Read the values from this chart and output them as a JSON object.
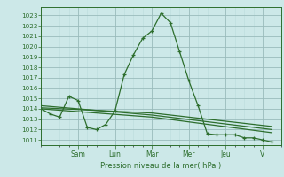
{
  "xlabel": "Pression niveau de la mer( hPa )",
  "bg_color": "#cce8e8",
  "grid_major_color": "#99bbbb",
  "grid_minor_color": "#bbdddd",
  "line_color": "#2d6e2d",
  "ylim": [
    1010.5,
    1023.8
  ],
  "yticks": [
    1011,
    1012,
    1013,
    1014,
    1015,
    1016,
    1017,
    1018,
    1019,
    1020,
    1021,
    1022,
    1023
  ],
  "day_labels": [
    "Sam",
    "Lun",
    "Mar",
    "Mer",
    "Jeu",
    "V"
  ],
  "day_positions": [
    2,
    4,
    6,
    8,
    10,
    12
  ],
  "xlim": [
    0,
    13
  ],
  "series1_x": [
    0,
    0.5,
    1,
    1.5,
    2,
    2.5,
    3,
    3.5,
    4,
    4.5,
    5,
    5.5,
    6,
    6.5,
    7,
    7.5,
    8,
    8.5,
    9,
    9.5,
    10,
    10.5,
    11,
    11.5,
    12,
    12.5
  ],
  "series1_y": [
    1014.0,
    1013.5,
    1013.2,
    1015.2,
    1014.8,
    1012.2,
    1012.0,
    1012.5,
    1013.8,
    1017.3,
    1019.2,
    1020.8,
    1021.5,
    1023.2,
    1022.3,
    1019.5,
    1016.7,
    1014.3,
    1011.6,
    1011.5,
    1011.5,
    1011.5,
    1011.2,
    1011.2,
    1011.0,
    1010.8
  ],
  "series2_x": [
    0,
    6,
    12.5
  ],
  "series2_y": [
    1014.1,
    1013.6,
    1012.3
  ],
  "series3_x": [
    0,
    6,
    12.5
  ],
  "series3_y": [
    1014.3,
    1013.4,
    1012.0
  ],
  "series4_x": [
    0,
    6,
    12.5
  ],
  "series4_y": [
    1014.0,
    1013.2,
    1011.7
  ]
}
